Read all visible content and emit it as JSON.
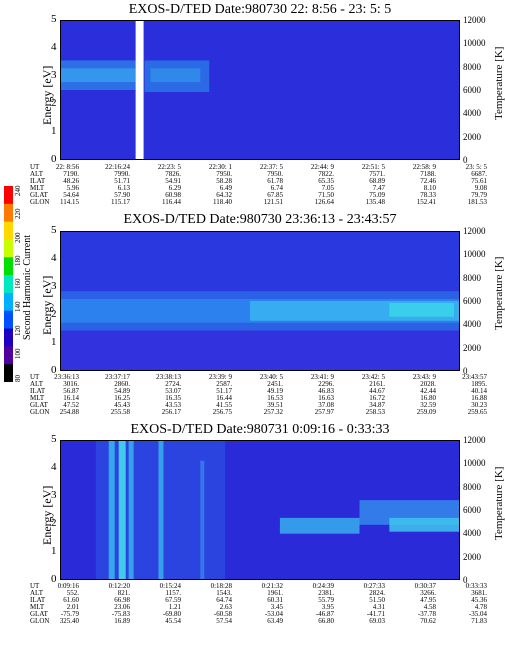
{
  "colorbar": {
    "label": "Second Harmonic Current",
    "ticks": [
      "240",
      "220",
      "200",
      "180",
      "160",
      "140",
      "120",
      "100",
      "80"
    ],
    "colors": [
      "#ff0000",
      "#ff7a00",
      "#ffd800",
      "#c8ff00",
      "#00e000",
      "#00e8c0",
      "#00b0ff",
      "#0050ff",
      "#2000c0",
      "#5000a0",
      "#000000"
    ]
  },
  "panels": [
    {
      "title": "EXOS-D/TED   Date:980730  22: 8:56 - 23: 5: 5",
      "ylabel": "Energy [eV]",
      "y2label": "Temperature [K]",
      "yticks": [
        "5",
        "4",
        "3",
        "2",
        "1",
        "0"
      ],
      "y2ticks": [
        "12000",
        "10000",
        "8000",
        "6000",
        "4000",
        "2000",
        "0"
      ],
      "ephem": {
        "labels": [
          "UT",
          "ALT",
          "ILAT",
          "MLT",
          "GLAT",
          "GLON"
        ],
        "rows": [
          [
            "22: 8:56",
            "22:16:24",
            "22:23: 5",
            "22:30: 1",
            "22:37: 5",
            "22:44: 9",
            "22:51: 5",
            "22:58: 9",
            "23: 5: 5"
          ],
          [
            "7190.",
            "7990.",
            "7826.",
            "7950.",
            "7950.",
            "7822.",
            "7571.",
            "7188.",
            "6687."
          ],
          [
            "48.26",
            "51.71",
            "54.91",
            "58.28",
            "61.78",
            "65.35",
            "68.89",
            "72.46",
            "75.61"
          ],
          [
            "5.96",
            "6.13",
            "6.29",
            "6.49",
            "6.74",
            "7.05",
            "7.47",
            "8.10",
            "9.08"
          ],
          [
            "54.64",
            "57.90",
            "60.98",
            "64.32",
            "67.85",
            "71.50",
            "75.09",
            "78.33",
            "79.79"
          ],
          [
            "114.15",
            "115.17",
            "116.44",
            "118.40",
            "121.51",
            "126.64",
            "135.48",
            "152.41",
            "181.53"
          ]
        ]
      }
    },
    {
      "title": "EXOS-D/TED   Date:980730  23:36:13 - 23:43:57",
      "ylabel": "Energy [eV]",
      "y2label": "Temperature [K]",
      "yticks": [
        "5",
        "4",
        "3",
        "2",
        "1",
        "0"
      ],
      "y2ticks": [
        "12000",
        "10000",
        "8000",
        "6000",
        "4000",
        "2000",
        "0"
      ],
      "ephem": {
        "labels": [
          "UT",
          "ALT",
          "ILAT",
          "MLT",
          "GLAT",
          "GLON"
        ],
        "rows": [
          [
            "23:36:13",
            "23:37:17",
            "23:38:13",
            "23:39: 9",
            "23:40: 5",
            "23:41: 9",
            "23:42: 5",
            "23:43: 9",
            "23:43:57"
          ],
          [
            "3016.",
            "2860.",
            "2724.",
            "2587.",
            "2451.",
            "2296.",
            "2161.",
            "2028.",
            "1895."
          ],
          [
            "56.87",
            "54.89",
            "53.07",
            "51.17",
            "49.19",
            "46.83",
            "44.67",
            "42.44",
            "40.14"
          ],
          [
            "16.14",
            "16.25",
            "16.35",
            "16.44",
            "16.53",
            "16.63",
            "16.72",
            "16.80",
            "16.88"
          ],
          [
            "47.52",
            "45.43",
            "43.53",
            "41.55",
            "39.51",
            "37.08",
            "34.87",
            "32.59",
            "30.23"
          ],
          [
            "254.88",
            "255.58",
            "256.17",
            "256.75",
            "257.32",
            "257.97",
            "258.53",
            "259.09",
            "259.65"
          ]
        ]
      }
    },
    {
      "title": "EXOS-D/TED   Date:980731   0:09:16 - 0:33:33",
      "ylabel": "Energy [eV]",
      "y2label": "Temperature [K]",
      "yticks": [
        "5",
        "4",
        "3",
        "2",
        "1",
        "0"
      ],
      "y2ticks": [
        "12000",
        "10000",
        "8000",
        "6000",
        "4000",
        "2000",
        "0"
      ],
      "ephem": {
        "labels": [
          "UT",
          "ALT",
          "ILAT",
          "MLT",
          "GLAT",
          "GLON"
        ],
        "rows": [
          [
            "0:09:16",
            "0:12:20",
            "0:15:24",
            "0:18:28",
            "0:21:32",
            "0:24:39",
            "0:27:33",
            "0:30:37",
            "0:33:33"
          ],
          [
            "552.",
            "821.",
            "1157.",
            "1543.",
            "1961.",
            "2381.",
            "2824.",
            "3266.",
            "3681."
          ],
          [
            "61.60",
            "66.98",
            "67.59",
            "64.74",
            "60.31",
            "55.79",
            "51.50",
            "47.95",
            "45.36"
          ],
          [
            "2.01",
            "23.06",
            "1.21",
            "2.63",
            "3.45",
            "3.95",
            "4.31",
            "4.58",
            "4.78"
          ],
          [
            "-75.79",
            "-75.83",
            "-69.80",
            "-60.58",
            "-53.04",
            "-46.87",
            "-41.71",
            "-37.78",
            "-35.04"
          ],
          [
            "325.40",
            "16.89",
            "45.54",
            "57.54",
            "63.49",
            "66.80",
            "69.03",
            "70.62",
            "71.83"
          ]
        ]
      }
    }
  ],
  "chart_data": [
    {
      "type": "heatmap",
      "title": "EXOS-D/TED   Date:980730  22: 8:56 - 23: 5: 5",
      "ylabel": "Energy [eV]",
      "y2label": "Temperature [K]",
      "ylim": [
        0,
        5
      ],
      "y2lim": [
        0,
        12000
      ],
      "x_ticks": [
        "22: 8:56",
        "22:16:24",
        "22:23: 5",
        "22:30: 1",
        "22:37: 5",
        "22:44: 9",
        "22:51: 5",
        "22:58: 9",
        "23: 5: 5"
      ],
      "data_gap": {
        "from_fraction": 0.19,
        "to_fraction": 0.21
      },
      "enhancement": [
        {
          "x": [
            0.0,
            0.19
          ],
          "y": [
            2.4,
            3.4
          ]
        },
        {
          "x": [
            0.21,
            0.37
          ],
          "y": [
            2.4,
            3.4
          ]
        }
      ]
    },
    {
      "type": "heatmap",
      "title": "EXOS-D/TED   Date:980730  23:36:13 - 23:43:57",
      "ylabel": "Energy [eV]",
      "y2label": "Temperature [K]",
      "ylim": [
        0,
        5
      ],
      "y2lim": [
        0,
        12000
      ],
      "x_ticks": [
        "23:36:13",
        "23:37:17",
        "23:38:13",
        "23:39: 9",
        "23:40: 5",
        "23:41: 9",
        "23:42: 5",
        "23:43: 9",
        "23:43:57"
      ],
      "enhancement": [
        {
          "x": [
            0.0,
            1.0
          ],
          "y": [
            1.4,
            2.8
          ]
        }
      ]
    },
    {
      "type": "heatmap",
      "title": "EXOS-D/TED   Date:980731   0:09:16 - 0:33:33",
      "ylabel": "Energy [eV]",
      "y2label": "Temperature [K]",
      "ylim": [
        0,
        5
      ],
      "y2lim": [
        0,
        12000
      ],
      "x_ticks": [
        "0:09:16",
        "0:12:20",
        "0:15:24",
        "0:18:28",
        "0:21:32",
        "0:24:39",
        "0:27:33",
        "0:30:37",
        "0:33:33"
      ],
      "enhancement": [
        {
          "x": [
            0.08,
            0.42
          ],
          "y": [
            0.0,
            5.0
          ]
        },
        {
          "x": [
            0.55,
            1.0
          ],
          "y": [
            1.8,
            3.0
          ]
        }
      ]
    }
  ]
}
